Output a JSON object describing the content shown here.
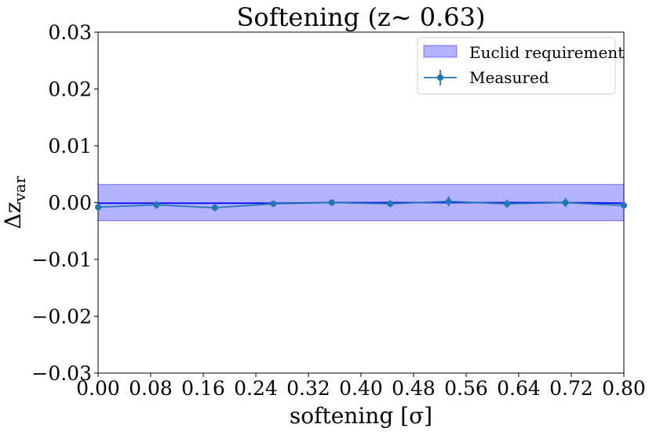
{
  "chart_data": {
    "type": "line",
    "title": "Softening (z∼ 0.63)",
    "xlabel": "softening [σ]",
    "ylabel": "Δz",
    "ylabel_sub": "var",
    "xlim": [
      0.0,
      0.8
    ],
    "ylim": [
      -0.03,
      0.03
    ],
    "x_ticks": [
      0.0,
      0.08,
      0.16,
      0.24,
      0.32,
      0.4,
      0.48,
      0.56,
      0.64,
      0.72,
      0.8
    ],
    "x_tick_labels": [
      "0.00",
      "0.08",
      "0.16",
      "0.24",
      "0.32",
      "0.40",
      "0.48",
      "0.56",
      "0.64",
      "0.72",
      "0.80"
    ],
    "y_ticks": [
      -0.03,
      -0.02,
      -0.01,
      0.0,
      0.01,
      0.02,
      0.03
    ],
    "y_tick_labels": [
      "−0.03",
      "−0.02",
      "−0.01",
      "0.00",
      "0.01",
      "0.02",
      "0.03"
    ],
    "grid": false,
    "legend_position": "top-right",
    "band": {
      "name": "Euclid requirement",
      "ymin": -0.0032,
      "ymax": 0.0032,
      "color": "#0000ff",
      "fill_opacity": 0.3
    },
    "series": [
      {
        "name": "Measured",
        "color": "#1f77b4",
        "x": [
          0.0,
          0.0889,
          0.1778,
          0.2667,
          0.3556,
          0.4444,
          0.5333,
          0.6222,
          0.7111,
          0.8
        ],
        "y": [
          -0.0008,
          -0.0004,
          -0.0009,
          -0.0002,
          0.0,
          -0.0002,
          0.0002,
          -0.0002,
          0.0,
          -0.0005
        ],
        "yerr": [
          0.0006,
          0.0007,
          0.0006,
          0.0005,
          0.0005,
          0.0006,
          0.0009,
          0.0007,
          0.0008,
          0.0006
        ]
      },
      {
        "color": "#0000ff",
        "x": [
          0.0,
          0.0889,
          0.1778,
          0.2667,
          0.3556,
          0.4444,
          0.5333,
          0.6222,
          0.7111,
          0.8
        ],
        "y": [
          -0.0001,
          -0.0001,
          -0.0001,
          -0.0001,
          0.0,
          0.0,
          0.0,
          0.0,
          0.0,
          -0.0001
        ]
      }
    ]
  }
}
